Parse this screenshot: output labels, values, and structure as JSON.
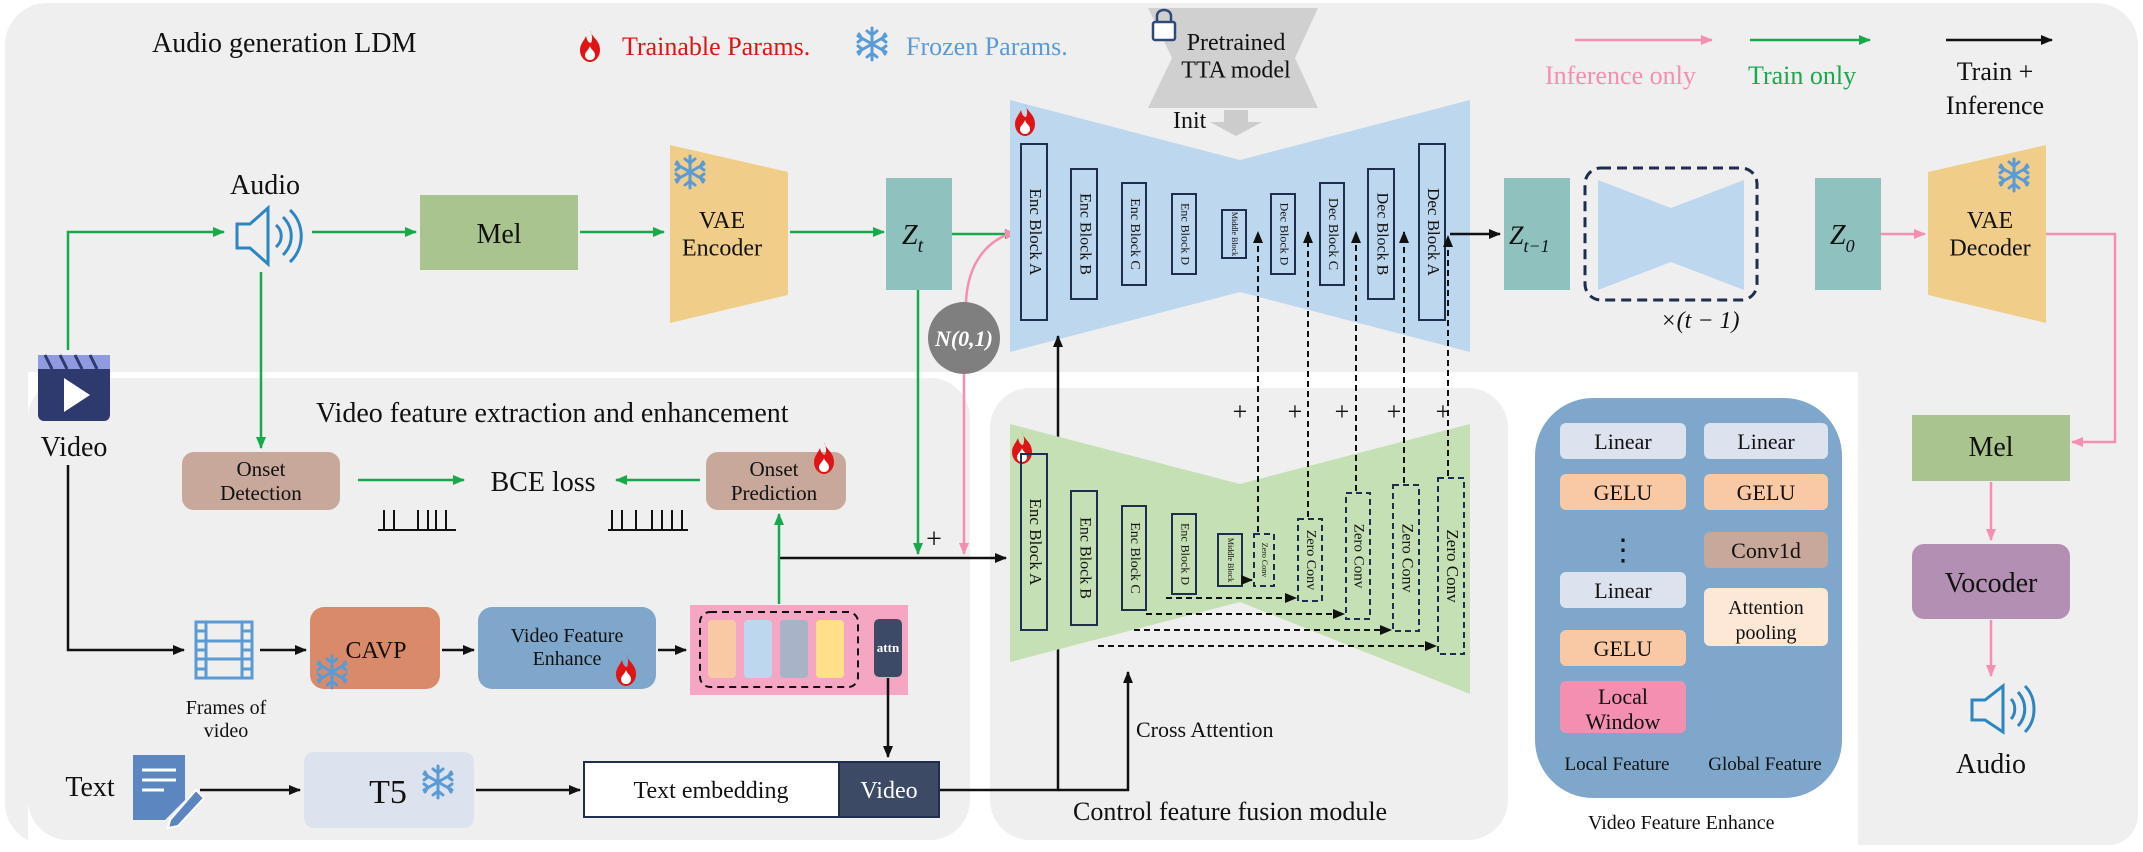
{
  "panels": {
    "audio_ldm": "Audio generation LDM",
    "video_feat": "Video feature extraction and enhancement",
    "fusion": "Control feature fusion module",
    "vfe_caption": "Video Feature Enhance"
  },
  "legend": {
    "trainable": "Trainable Params.",
    "frozen": "Frozen Params.",
    "pretrained": "Pretrained\nTTA model",
    "init": "Init",
    "inference_only": "Inference only",
    "train_only": "Train only",
    "train_inference_1": "Train +",
    "train_inference_2": "Inference"
  },
  "colors": {
    "trainable": "#e01414",
    "frozen": "#5b9bd5",
    "inference_arrow": "#f48fb1",
    "train_arrow": "#1aa84c",
    "unet": "#bdd7ee",
    "control": "#c5e0b4",
    "vae": "#f0ce8a",
    "latent": "#8fc1bf",
    "mel": "#a9c48f",
    "vocoder": "#b48fb4",
    "cavp": "#d98a6a",
    "vfe": "#7fa7cc",
    "vfe_panel": "#7fa7cc"
  },
  "nodes": {
    "audio_in": "Audio",
    "video_in": "Video",
    "mel": "Mel",
    "vae_encoder": "VAE\nEncoder",
    "zt": "Z",
    "zt_sub": "t",
    "noise": "N(0,1)",
    "zt1": "Z",
    "zt1_sub": "t−1",
    "z0": "Z",
    "z0_sub": "0",
    "repeat": "×(t − 1)",
    "vae_decoder": "VAE\nDecoder",
    "mel_out": "Mel",
    "vocoder": "Vocoder",
    "audio_out": "Audio",
    "onset_detection": "Onset\nDetection",
    "bce_loss": "BCE loss",
    "onset_prediction": "Onset\nPrediction",
    "frames": "Frames of\nvideo",
    "cavp": "CAVP",
    "video_feature_enhance": "Video Feature\nEnhance",
    "attn": "attn",
    "text": "Text",
    "t5": "T5",
    "text_embedding": "Text embedding",
    "video_token": "Video",
    "cross_attention": "Cross Attention",
    "plus": "+"
  },
  "unet_blocks": [
    "Enc Block A",
    "Enc Block B",
    "Enc Block C",
    "Enc Block D",
    "Middle Block",
    "Dec Block D",
    "Dec Block C",
    "Dec Block B",
    "Dec Block A"
  ],
  "control_blocks": [
    "Enc Block A",
    "Enc Block B",
    "Enc Block C",
    "Enc Block D",
    "Middle Block"
  ],
  "zero_convs": [
    "Zero Conv",
    "Zero Conv",
    "Zero Conv",
    "Zero Conv",
    "Zero Conv"
  ],
  "vfe_panel": {
    "local": [
      "Linear",
      "GELU",
      "⋮",
      "Linear",
      "GELU",
      "Local\nWindow"
    ],
    "global": [
      "Linear",
      "GELU",
      "Conv1d",
      "Attention\npooling"
    ],
    "local_label": "Local Feature",
    "global_label": "Global Feature"
  }
}
